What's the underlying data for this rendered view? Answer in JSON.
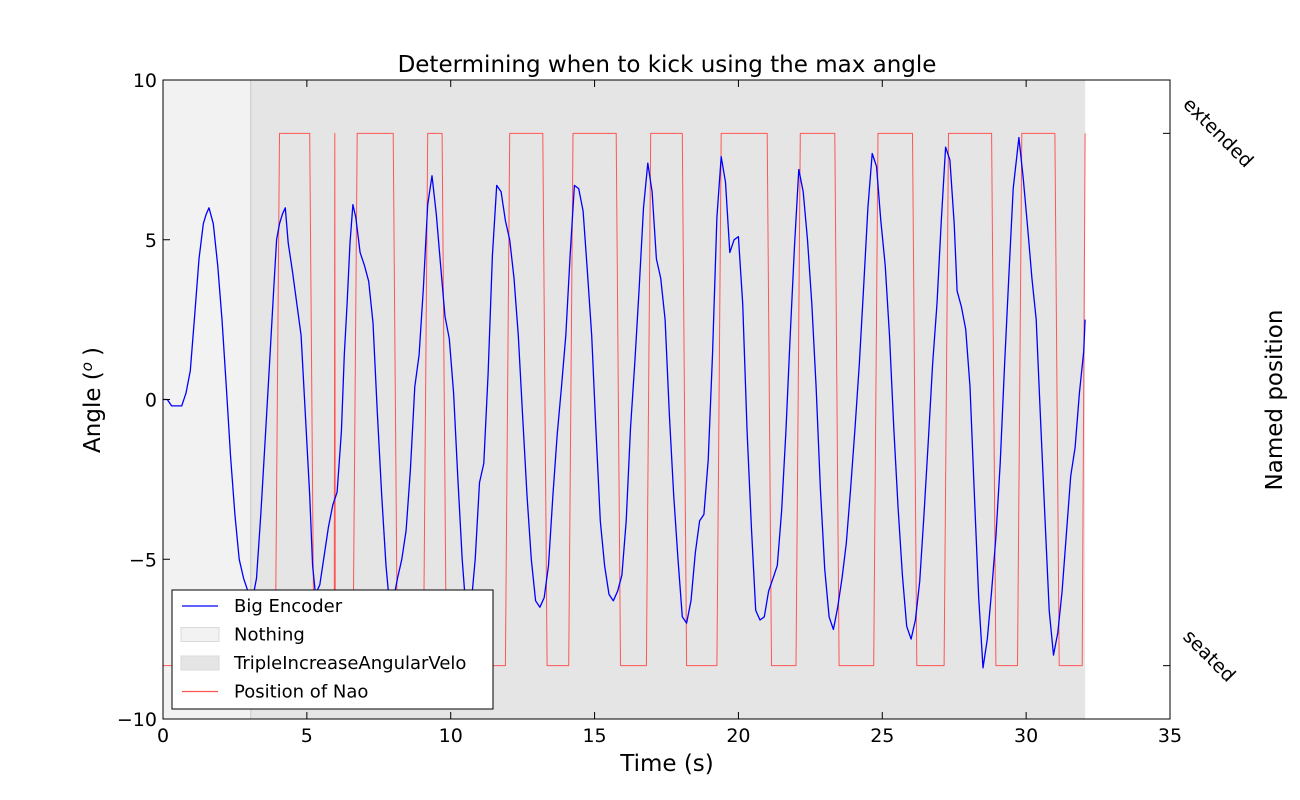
{
  "chart_data": {
    "type": "line",
    "title": "Determining when to kick using the max angle",
    "xlabel": "Time (s)",
    "ylabel": "Angle (",
    "ylabel_sup": "o",
    "ylabel_close": ")",
    "right_ylabel": "Named position",
    "xlim": [
      0,
      35
    ],
    "ylim": [
      -10,
      10
    ],
    "xticks": [
      0,
      5,
      10,
      15,
      20,
      25,
      30,
      35
    ],
    "yticks": [
      -10,
      -5,
      0,
      5,
      10
    ],
    "right_ticks": [
      {
        "value": 8.33,
        "label": "extended"
      },
      {
        "value": -8.33,
        "label": "seated"
      }
    ],
    "grid": false,
    "legend_position": "lower-left",
    "regions": [
      {
        "name": "Nothing",
        "start": 0,
        "end": 3.05,
        "color": "#f2f2f2"
      },
      {
        "name": "TripleIncreaseAngularVelo",
        "start": 3.05,
        "end": 32.05,
        "color": "#e5e5e5"
      }
    ],
    "series": [
      {
        "name": "Big Encoder",
        "color": "#0000ff",
        "points": [
          [
            0,
            0
          ],
          [
            0.15,
            0
          ],
          [
            0.3,
            -0.2
          ],
          [
            0.5,
            -0.2
          ],
          [
            0.65,
            -0.2
          ],
          [
            0.8,
            0.2
          ],
          [
            0.95,
            0.9
          ],
          [
            1.1,
            2.6
          ],
          [
            1.25,
            4.4
          ],
          [
            1.4,
            5.5
          ],
          [
            1.5,
            5.8
          ],
          [
            1.6,
            6.0
          ],
          [
            1.75,
            5.5
          ],
          [
            1.9,
            4.2
          ],
          [
            2.05,
            2.5
          ],
          [
            2.2,
            0.4
          ],
          [
            2.35,
            -1.8
          ],
          [
            2.5,
            -3.6
          ],
          [
            2.65,
            -5.0
          ],
          [
            2.8,
            -5.6
          ],
          [
            2.95,
            -6.0
          ],
          [
            3.1,
            -6.3
          ],
          [
            3.25,
            -5.6
          ],
          [
            3.4,
            -3.6
          ],
          [
            3.55,
            -1.3
          ],
          [
            3.7,
            1.1
          ],
          [
            3.85,
            3.5
          ],
          [
            3.95,
            5.0
          ],
          [
            4.05,
            5.5
          ],
          [
            4.15,
            5.8
          ],
          [
            4.25,
            6.0
          ],
          [
            4.35,
            4.9
          ],
          [
            4.5,
            4.0
          ],
          [
            4.65,
            3.0
          ],
          [
            4.8,
            2.0
          ],
          [
            4.95,
            -0.5
          ],
          [
            5.1,
            -3.0
          ],
          [
            5.2,
            -5.2
          ],
          [
            5.3,
            -6.1
          ],
          [
            5.45,
            -5.8
          ],
          [
            5.6,
            -4.9
          ],
          [
            5.75,
            -4.0
          ],
          [
            5.9,
            -3.3
          ],
          [
            6.05,
            -2.9
          ],
          [
            6.2,
            -1.0
          ],
          [
            6.3,
            1.4
          ],
          [
            6.4,
            3.0
          ],
          [
            6.5,
            4.9
          ],
          [
            6.6,
            6.1
          ],
          [
            6.7,
            5.7
          ],
          [
            6.85,
            4.6
          ],
          [
            7.0,
            4.2
          ],
          [
            7.15,
            3.7
          ],
          [
            7.3,
            2.4
          ],
          [
            7.45,
            -0.4
          ],
          [
            7.6,
            -3.0
          ],
          [
            7.75,
            -5.2
          ],
          [
            7.85,
            -6.2
          ],
          [
            8.0,
            -6.3
          ],
          [
            8.15,
            -5.6
          ],
          [
            8.3,
            -5.0
          ],
          [
            8.45,
            -4.1
          ],
          [
            8.6,
            -2.2
          ],
          [
            8.75,
            0.4
          ],
          [
            8.9,
            1.4
          ],
          [
            9.05,
            3.5
          ],
          [
            9.2,
            6.1
          ],
          [
            9.35,
            7.0
          ],
          [
            9.5,
            5.8
          ],
          [
            9.65,
            4.2
          ],
          [
            9.8,
            2.6
          ],
          [
            9.95,
            1.9
          ],
          [
            10.1,
            0.2
          ],
          [
            10.25,
            -2.5
          ],
          [
            10.4,
            -5.0
          ],
          [
            10.55,
            -6.8
          ],
          [
            10.7,
            -6.5
          ],
          [
            10.85,
            -5.0
          ],
          [
            11.0,
            -2.6
          ],
          [
            11.15,
            -2.0
          ],
          [
            11.3,
            0.8
          ],
          [
            11.45,
            4.5
          ],
          [
            11.6,
            6.7
          ],
          [
            11.75,
            6.5
          ],
          [
            11.9,
            5.6
          ],
          [
            12.05,
            5.0
          ],
          [
            12.2,
            3.8
          ],
          [
            12.35,
            2.0
          ],
          [
            12.5,
            -0.5
          ],
          [
            12.65,
            -3.0
          ],
          [
            12.8,
            -5.0
          ],
          [
            12.95,
            -6.3
          ],
          [
            13.1,
            -6.5
          ],
          [
            13.25,
            -6.2
          ],
          [
            13.4,
            -5.2
          ],
          [
            13.55,
            -3.0
          ],
          [
            13.7,
            -1.1
          ],
          [
            13.85,
            0.4
          ],
          [
            14.0,
            2.0
          ],
          [
            14.15,
            4.5
          ],
          [
            14.3,
            6.7
          ],
          [
            14.45,
            6.6
          ],
          [
            14.6,
            5.9
          ],
          [
            14.75,
            4.0
          ],
          [
            14.9,
            2.0
          ],
          [
            15.05,
            -1.0
          ],
          [
            15.2,
            -3.8
          ],
          [
            15.35,
            -5.2
          ],
          [
            15.5,
            -6.1
          ],
          [
            15.65,
            -6.3
          ],
          [
            15.8,
            -6.0
          ],
          [
            15.95,
            -5.5
          ],
          [
            16.1,
            -3.8
          ],
          [
            16.25,
            -0.9
          ],
          [
            16.4,
            1.2
          ],
          [
            16.55,
            3.5
          ],
          [
            16.7,
            6.0
          ],
          [
            16.85,
            7.4
          ],
          [
            17.0,
            6.5
          ],
          [
            17.15,
            4.4
          ],
          [
            17.3,
            3.8
          ],
          [
            17.45,
            2.5
          ],
          [
            17.6,
            -0.5
          ],
          [
            17.75,
            -3.0
          ],
          [
            17.9,
            -5.0
          ],
          [
            18.05,
            -6.8
          ],
          [
            18.2,
            -7.0
          ],
          [
            18.35,
            -6.3
          ],
          [
            18.5,
            -4.8
          ],
          [
            18.65,
            -3.8
          ],
          [
            18.8,
            -3.6
          ],
          [
            18.95,
            -1.9
          ],
          [
            19.1,
            1.4
          ],
          [
            19.25,
            5.7
          ],
          [
            19.4,
            7.6
          ],
          [
            19.55,
            6.8
          ],
          [
            19.7,
            4.6
          ],
          [
            19.85,
            5.0
          ],
          [
            20.0,
            5.1
          ],
          [
            20.15,
            3.0
          ],
          [
            20.3,
            -1.0
          ],
          [
            20.45,
            -4.0
          ],
          [
            20.6,
            -6.6
          ],
          [
            20.75,
            -6.9
          ],
          [
            20.9,
            -6.8
          ],
          [
            21.05,
            -6.0
          ],
          [
            21.2,
            -5.6
          ],
          [
            21.35,
            -5.2
          ],
          [
            21.5,
            -3.5
          ],
          [
            21.65,
            -1.0
          ],
          [
            21.8,
            2.0
          ],
          [
            21.95,
            4.8
          ],
          [
            22.1,
            7.2
          ],
          [
            22.25,
            6.5
          ],
          [
            22.4,
            5.0
          ],
          [
            22.55,
            3.0
          ],
          [
            22.7,
            0.4
          ],
          [
            22.85,
            -2.8
          ],
          [
            23.0,
            -5.3
          ],
          [
            23.15,
            -6.8
          ],
          [
            23.3,
            -7.2
          ],
          [
            23.45,
            -6.5
          ],
          [
            23.6,
            -5.6
          ],
          [
            23.75,
            -4.5
          ],
          [
            23.9,
            -2.8
          ],
          [
            24.05,
            -0.9
          ],
          [
            24.2,
            1.1
          ],
          [
            24.35,
            3.5
          ],
          [
            24.5,
            6.0
          ],
          [
            24.65,
            7.7
          ],
          [
            24.8,
            7.3
          ],
          [
            24.95,
            5.6
          ],
          [
            25.1,
            4.2
          ],
          [
            25.25,
            2.0
          ],
          [
            25.4,
            -0.9
          ],
          [
            25.55,
            -3.4
          ],
          [
            25.7,
            -5.5
          ],
          [
            25.85,
            -7.1
          ],
          [
            26.0,
            -7.5
          ],
          [
            26.15,
            -6.9
          ],
          [
            26.3,
            -5.7
          ],
          [
            26.45,
            -3.6
          ],
          [
            26.6,
            -1.3
          ],
          [
            26.75,
            1.1
          ],
          [
            26.9,
            3.0
          ],
          [
            27.05,
            5.6
          ],
          [
            27.2,
            7.9
          ],
          [
            27.35,
            7.5
          ],
          [
            27.5,
            5.5
          ],
          [
            27.6,
            3.4
          ],
          [
            27.75,
            2.9
          ],
          [
            27.9,
            2.2
          ],
          [
            28.05,
            0.4
          ],
          [
            28.2,
            -3.0
          ],
          [
            28.35,
            -6.2
          ],
          [
            28.5,
            -8.4
          ],
          [
            28.65,
            -7.5
          ],
          [
            28.8,
            -6.0
          ],
          [
            28.95,
            -4.3
          ],
          [
            29.1,
            -2.0
          ],
          [
            29.25,
            1.1
          ],
          [
            29.4,
            3.9
          ],
          [
            29.55,
            6.6
          ],
          [
            29.75,
            8.2
          ],
          [
            29.9,
            6.9
          ],
          [
            30.05,
            5.4
          ],
          [
            30.2,
            3.8
          ],
          [
            30.35,
            2.5
          ],
          [
            30.5,
            -0.6
          ],
          [
            30.65,
            -3.6
          ],
          [
            30.8,
            -6.6
          ],
          [
            30.95,
            -8.0
          ],
          [
            31.1,
            -7.3
          ],
          [
            31.25,
            -6.0
          ],
          [
            31.4,
            -4.2
          ],
          [
            31.55,
            -2.4
          ],
          [
            31.7,
            -1.5
          ],
          [
            31.85,
            0.2
          ],
          [
            32.0,
            1.5
          ],
          [
            32.05,
            2.5
          ]
        ]
      },
      {
        "name": "Position of Nao",
        "color": "#ff5555",
        "points": [
          [
            0,
            -8.33
          ],
          [
            3.9,
            -8.33
          ],
          [
            4.05,
            8.33
          ],
          [
            5.1,
            8.33
          ],
          [
            5.25,
            -8.33
          ],
          [
            5.95,
            -8.33
          ],
          [
            5.97,
            8.33
          ],
          [
            5.99,
            -8.33
          ],
          [
            6.6,
            -8.33
          ],
          [
            6.75,
            8.33
          ],
          [
            8.0,
            8.33
          ],
          [
            8.15,
            -8.33
          ],
          [
            9.05,
            -8.33
          ],
          [
            9.2,
            8.33
          ],
          [
            9.7,
            8.33
          ],
          [
            9.85,
            -8.33
          ],
          [
            11.9,
            -8.33
          ],
          [
            12.05,
            8.33
          ],
          [
            13.2,
            8.33
          ],
          [
            13.35,
            -8.33
          ],
          [
            14.1,
            -8.33
          ],
          [
            14.25,
            8.33
          ],
          [
            15.75,
            8.33
          ],
          [
            15.9,
            -8.33
          ],
          [
            16.8,
            -8.33
          ],
          [
            16.95,
            8.33
          ],
          [
            18.05,
            8.33
          ],
          [
            18.2,
            -8.33
          ],
          [
            19.25,
            -8.33
          ],
          [
            19.4,
            8.33
          ],
          [
            21.0,
            8.33
          ],
          [
            21.15,
            -8.33
          ],
          [
            22.0,
            -8.33
          ],
          [
            22.15,
            8.33
          ],
          [
            23.35,
            8.33
          ],
          [
            23.5,
            -8.33
          ],
          [
            24.7,
            -8.33
          ],
          [
            24.85,
            8.33
          ],
          [
            26.05,
            8.33
          ],
          [
            26.2,
            -8.33
          ],
          [
            27.15,
            -8.33
          ],
          [
            27.3,
            8.33
          ],
          [
            28.8,
            8.33
          ],
          [
            28.95,
            -8.33
          ],
          [
            29.7,
            -8.33
          ],
          [
            29.85,
            8.33
          ],
          [
            31.0,
            8.33
          ],
          [
            31.15,
            -8.33
          ],
          [
            31.95,
            -8.33
          ],
          [
            32.05,
            8.33
          ]
        ]
      }
    ],
    "legend": [
      {
        "label": "Big Encoder",
        "kind": "line",
        "color": "#0000ff"
      },
      {
        "label": "Nothing",
        "kind": "patch",
        "color": "#f2f2f2"
      },
      {
        "label": "TripleIncreaseAngularVelo",
        "kind": "patch",
        "color": "#e5e5e5"
      },
      {
        "label": "Position of Nao",
        "kind": "line",
        "color": "#ff5555"
      }
    ]
  }
}
